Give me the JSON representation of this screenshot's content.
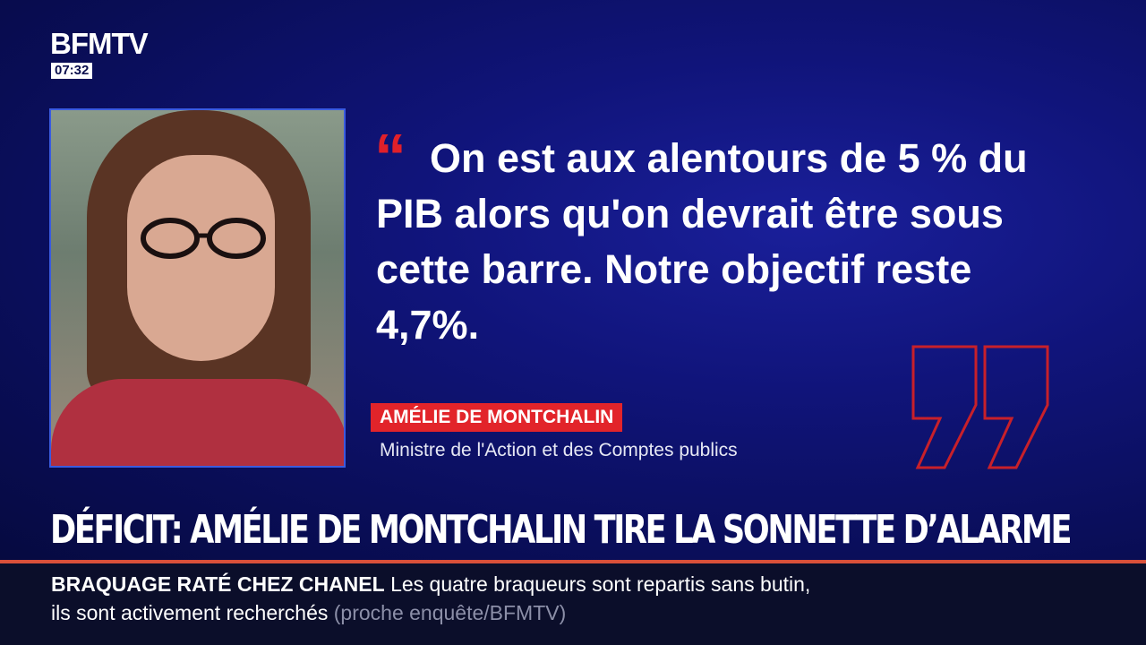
{
  "channel": {
    "logo": "BFMTV",
    "time": "07:32"
  },
  "quote": {
    "text": "On est aux alentours de 5 % du PIB alors qu'on devrait être sous cette barre. Notre objectif reste 4,7%.",
    "open_mark": "“"
  },
  "speaker": {
    "name": "AMÉLIE DE MONTCHALIN",
    "role": "Ministre de l'Action et des Comptes publics"
  },
  "headline": "DÉFICIT: AMÉLIE DE MONTCHALIN TIRE LA SONNETTE D’ALARME",
  "ticker": {
    "tag": "BRAQUAGE RATÉ CHEZ CHANEL",
    "line1": "Les quatre braqueurs sont repartis sans butin,",
    "line2": "ils sont activement recherchés",
    "source": "(proche enquête/BFMTV)"
  },
  "colors": {
    "accent": "#e2242a",
    "background": "#0a0e4e"
  }
}
